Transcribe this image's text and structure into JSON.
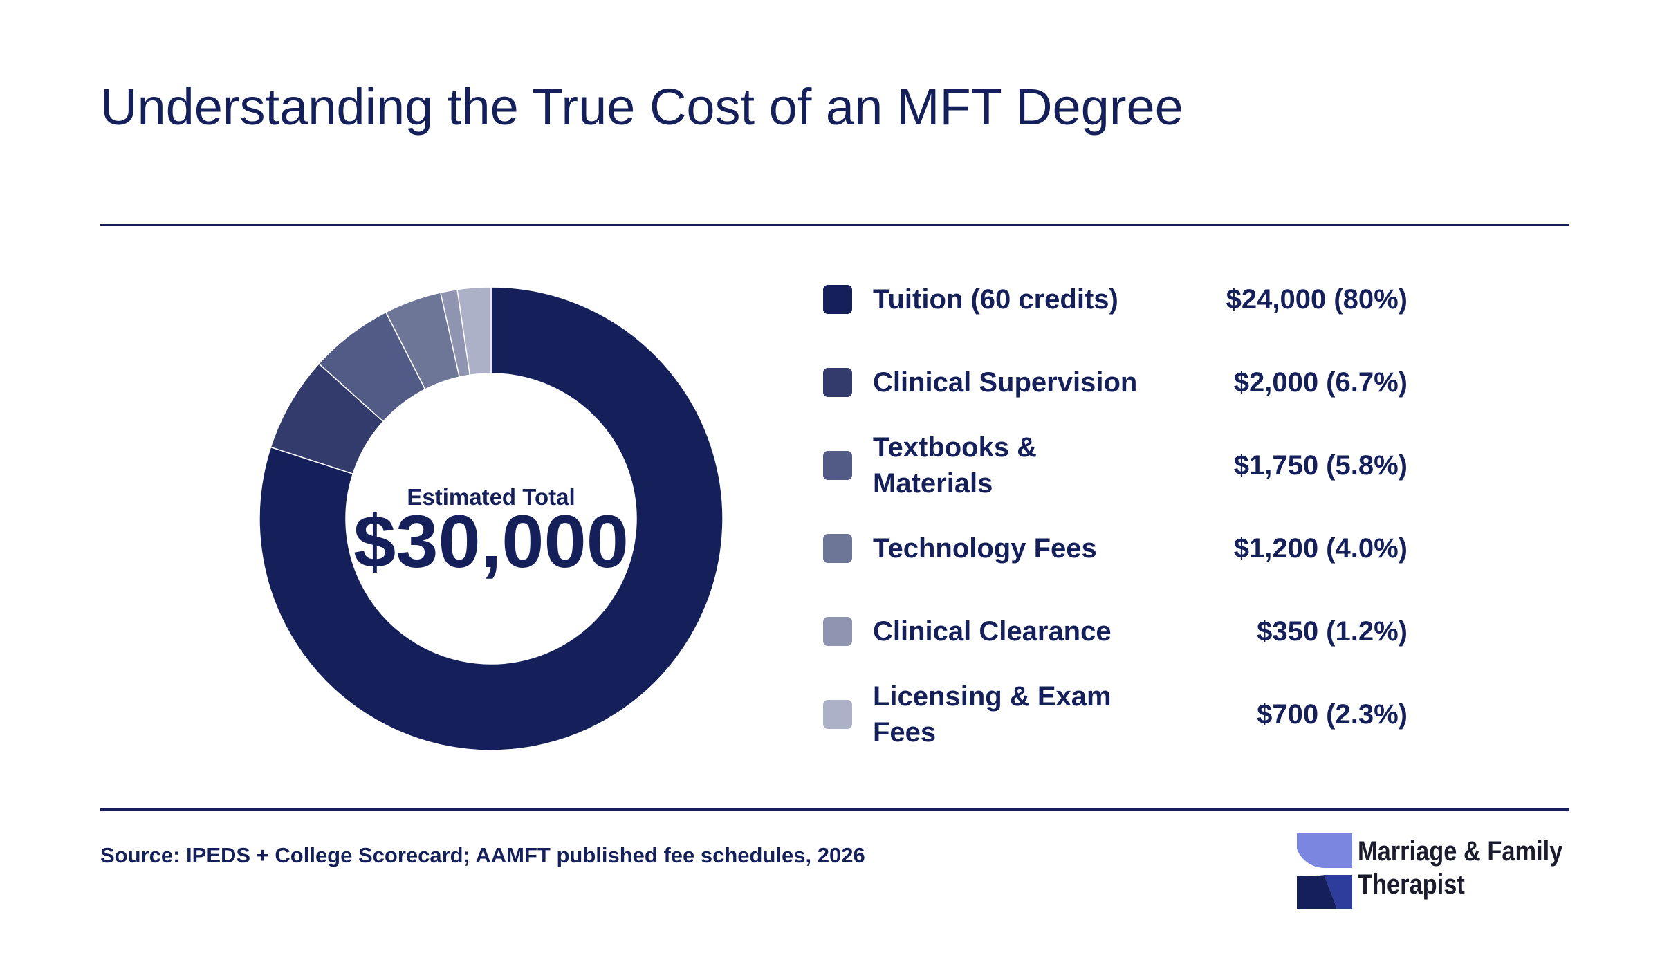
{
  "title": "Understanding the True Cost of an MFT Degree",
  "chart_data": {
    "type": "pie",
    "center_label": "Estimated Total",
    "center_value": "$30,000",
    "slices": [
      {
        "label": "Tuition (60 credits)",
        "value": 24000,
        "value_text": "$24,000 (80%)",
        "color": "#15205a"
      },
      {
        "label": "Clinical Supervision",
        "value": 2000,
        "value_text": "$2,000 (6.7%)",
        "color": "#323b6c"
      },
      {
        "label": "Textbooks & Materials",
        "value": 1750,
        "value_text": "$1,750 (5.8%)",
        "color": "#525b85"
      },
      {
        "label": "Technology Fees",
        "value": 1200,
        "value_text": "$1,200 (4.0%)",
        "color": "#6e7698"
      },
      {
        "label": "Clinical Clearance",
        "value": 350,
        "value_text": "$350 (1.2%)",
        "color": "#8f95b1"
      },
      {
        "label": "Licensing & Exam Fees",
        "value": 700,
        "value_text": "$700 (2.3%)",
        "color": "#adb1c8"
      }
    ]
  },
  "source": "Source: IPEDS + College Scorecard; AAMFT published fee schedules, 2026",
  "logo": {
    "line1": "Marriage & Family",
    "line2": "Therapist",
    "colors": {
      "light": "#7b86e0",
      "dark": "#15205a",
      "mid": "#2e3d9c"
    }
  }
}
